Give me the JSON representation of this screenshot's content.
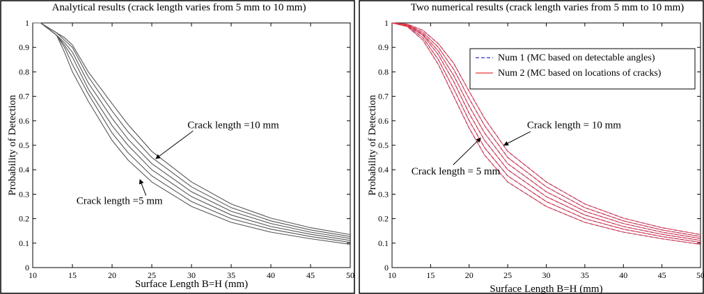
{
  "chart_data": [
    {
      "type": "line",
      "title": "Analytical results (crack length varies from 5 mm to 10 mm)",
      "xlabel": "Surface Length B=H (mm)",
      "ylabel": "Probability of Detection",
      "xlim": [
        10,
        50
      ],
      "ylim": [
        0,
        1
      ],
      "xticks": [
        "10",
        "15",
        "20",
        "25",
        "30",
        "35",
        "40",
        "45",
        "50"
      ],
      "yticks": [
        "0",
        "0.1",
        "0.2",
        "0.3",
        "0.4",
        "0.5",
        "0.6",
        "0.7",
        "0.8",
        "0.9",
        "1"
      ],
      "grid": false,
      "x": [
        10,
        11,
        13,
        14,
        15,
        17,
        20,
        22,
        25,
        30,
        35,
        40,
        45,
        50
      ],
      "series": [
        {
          "color": "#555555",
          "values": [
            1.0,
            1.0,
            0.95,
            0.88,
            0.8,
            0.68,
            0.52,
            0.44,
            0.35,
            0.25,
            0.185,
            0.145,
            0.118,
            0.095
          ]
        },
        {
          "color": "#555555",
          "values": [
            1.0,
            1.0,
            0.95,
            0.9,
            0.83,
            0.71,
            0.55,
            0.47,
            0.375,
            0.27,
            0.2,
            0.157,
            0.127,
            0.103
          ]
        },
        {
          "color": "#555555",
          "values": [
            1.0,
            1.0,
            0.95,
            0.91,
            0.86,
            0.73,
            0.58,
            0.5,
            0.4,
            0.29,
            0.215,
            0.168,
            0.136,
            0.111
          ]
        },
        {
          "color": "#555555",
          "values": [
            1.0,
            1.0,
            0.95,
            0.92,
            0.88,
            0.755,
            0.61,
            0.525,
            0.425,
            0.31,
            0.23,
            0.18,
            0.145,
            0.119
          ]
        },
        {
          "color": "#555555",
          "values": [
            1.0,
            1.0,
            0.96,
            0.93,
            0.9,
            0.78,
            0.64,
            0.555,
            0.45,
            0.33,
            0.245,
            0.191,
            0.154,
            0.127
          ]
        },
        {
          "color": "#555555",
          "values": [
            1.0,
            1.0,
            0.96,
            0.94,
            0.91,
            0.8,
            0.67,
            0.585,
            0.475,
            0.35,
            0.26,
            0.202,
            0.163,
            0.135
          ]
        }
      ],
      "annotations": [
        {
          "text": "Crack length =10 mm",
          "at": [
            29.5,
            0.57
          ],
          "arrow_to": [
            25.5,
            0.445
          ]
        },
        {
          "text": "Crack length =5 mm",
          "at": [
            15.5,
            0.26
          ],
          "arrow_to": [
            23.5,
            0.36
          ]
        }
      ]
    },
    {
      "type": "line",
      "title": "Two numerical results (crack length varies from 5 mm to 10 mm)",
      "xlabel": "Surface Length B=H (mm)",
      "ylabel": "Probability of Detection",
      "xlim": [
        10,
        50
      ],
      "ylim": [
        0,
        1
      ],
      "xticks": [
        "10",
        "15",
        "20",
        "25",
        "30",
        "35",
        "40",
        "45",
        "50"
      ],
      "yticks": [
        "0",
        "0.1",
        "0.2",
        "0.3",
        "0.4",
        "0.5",
        "0.6",
        "0.7",
        "0.8",
        "0.9",
        "1"
      ],
      "grid": false,
      "legend_position": "top-right",
      "legend": [
        {
          "name": "Num 1 (MC based on detectable angles)",
          "color": "#2b2bd6",
          "dash": "dashed"
        },
        {
          "name": "Num 2 (MC based on locations of cracks)",
          "color": "#e8383b",
          "dash": "solid"
        }
      ],
      "x": [
        10,
        12,
        14,
        16,
        18,
        20,
        22,
        25,
        30,
        35,
        40,
        45,
        50
      ],
      "series": [
        {
          "name": "Num 1 (MC based on detectable angles)",
          "color": "#2b2bd6",
          "group": "num1",
          "values": [
            1.0,
            0.985,
            0.93,
            0.83,
            0.7,
            0.57,
            0.46,
            0.35,
            0.25,
            0.185,
            0.145,
            0.118,
            0.095
          ]
        },
        {
          "name": "Num 1 (MC based on detectable angles)",
          "color": "#2b2bd6",
          "group": "num1",
          "values": [
            1.0,
            0.987,
            0.94,
            0.85,
            0.73,
            0.6,
            0.49,
            0.375,
            0.27,
            0.2,
            0.157,
            0.127,
            0.103
          ]
        },
        {
          "name": "Num 1 (MC based on detectable angles)",
          "color": "#2b2bd6",
          "group": "num1",
          "values": [
            1.0,
            0.989,
            0.95,
            0.87,
            0.76,
            0.63,
            0.52,
            0.4,
            0.29,
            0.215,
            0.168,
            0.136,
            0.111
          ]
        },
        {
          "name": "Num 1 (MC based on detectable angles)",
          "color": "#2b2bd6",
          "group": "num1",
          "values": [
            1.0,
            0.991,
            0.955,
            0.885,
            0.785,
            0.66,
            0.55,
            0.425,
            0.31,
            0.23,
            0.18,
            0.145,
            0.119
          ]
        },
        {
          "name": "Num 1 (MC based on detectable angles)",
          "color": "#2b2bd6",
          "group": "num1",
          "values": [
            1.0,
            0.993,
            0.962,
            0.9,
            0.81,
            0.69,
            0.58,
            0.45,
            0.33,
            0.245,
            0.191,
            0.154,
            0.127
          ]
        },
        {
          "name": "Num 1 (MC based on detectable angles)",
          "color": "#2b2bd6",
          "group": "num1",
          "values": [
            1.0,
            0.995,
            0.97,
            0.915,
            0.835,
            0.72,
            0.61,
            0.475,
            0.35,
            0.26,
            0.202,
            0.163,
            0.135
          ]
        },
        {
          "name": "Num 2 (MC based on locations of cracks)",
          "color": "#e8383b",
          "group": "num2",
          "values": [
            1.0,
            0.985,
            0.93,
            0.83,
            0.7,
            0.57,
            0.46,
            0.35,
            0.25,
            0.185,
            0.145,
            0.118,
            0.095
          ]
        },
        {
          "name": "Num 2 (MC based on locations of cracks)",
          "color": "#e8383b",
          "group": "num2",
          "values": [
            1.0,
            0.987,
            0.94,
            0.85,
            0.73,
            0.6,
            0.49,
            0.375,
            0.27,
            0.2,
            0.157,
            0.127,
            0.103
          ]
        },
        {
          "name": "Num 2 (MC based on locations of cracks)",
          "color": "#e8383b",
          "group": "num2",
          "values": [
            1.0,
            0.989,
            0.95,
            0.87,
            0.76,
            0.63,
            0.52,
            0.4,
            0.29,
            0.215,
            0.168,
            0.136,
            0.111
          ]
        },
        {
          "name": "Num 2 (MC based on locations of cracks)",
          "color": "#e8383b",
          "group": "num2",
          "values": [
            1.0,
            0.991,
            0.955,
            0.885,
            0.785,
            0.66,
            0.55,
            0.425,
            0.31,
            0.23,
            0.18,
            0.145,
            0.119
          ]
        },
        {
          "name": "Num 2 (MC based on locations of cracks)",
          "color": "#e8383b",
          "group": "num2",
          "values": [
            1.0,
            0.993,
            0.962,
            0.9,
            0.81,
            0.69,
            0.58,
            0.45,
            0.33,
            0.245,
            0.191,
            0.154,
            0.127
          ]
        },
        {
          "name": "Num 2 (MC based on locations of cracks)",
          "color": "#e8383b",
          "group": "num2",
          "values": [
            1.0,
            0.995,
            0.97,
            0.915,
            0.835,
            0.72,
            0.61,
            0.475,
            0.35,
            0.26,
            0.202,
            0.163,
            0.135
          ]
        }
      ],
      "annotations": [
        {
          "text": "Crack length = 10 mm",
          "at": [
            27.5,
            0.57
          ],
          "arrow_to": [
            24.5,
            0.5
          ]
        },
        {
          "text": "Crack length = 5 mm",
          "at": [
            12.5,
            0.38
          ],
          "arrow_to": [
            21.5,
            0.53
          ]
        }
      ]
    }
  ]
}
